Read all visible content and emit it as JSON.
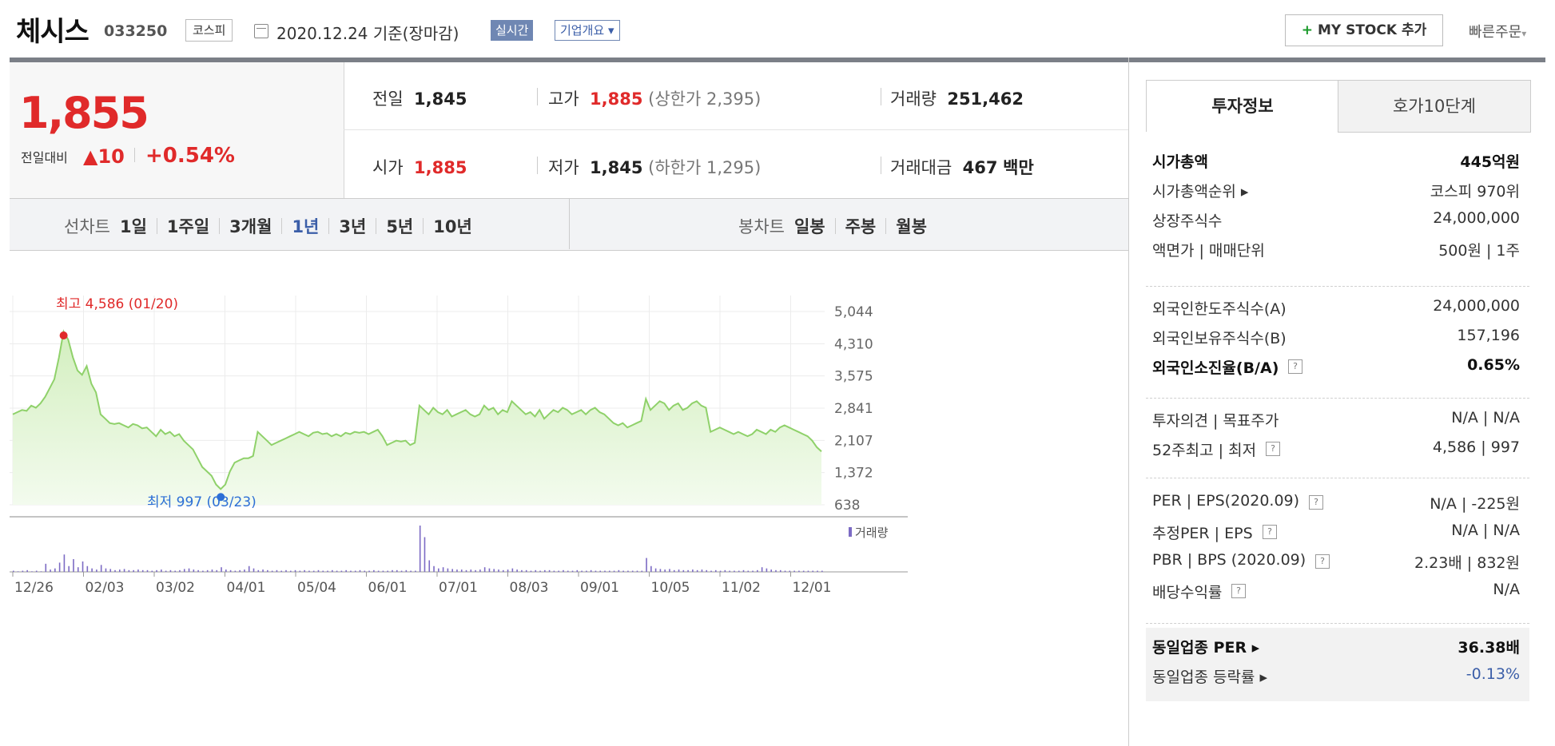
{
  "header": {
    "company_name": "체시스",
    "code": "033250",
    "market": "코스피",
    "date_text": "2020.12.24 기준(장마감)",
    "realtime_label": "실시간",
    "company_info_label": "기업개요",
    "mystock_label": "MY STOCK 추가",
    "quick_order_label": "빠른주문"
  },
  "price": {
    "current": "1,855",
    "change_label": "전일대비",
    "change_value": "▲10",
    "change_pct": "+0.54%"
  },
  "summary": {
    "prev_label": "전일",
    "prev_value": "1,845",
    "high_label": "고가",
    "high_value": "1,885",
    "upper_limit": "(상한가 2,395)",
    "volume_label": "거래량",
    "volume_value": "251,462",
    "open_label": "시가",
    "open_value": "1,885",
    "low_label": "저가",
    "low_value": "1,845",
    "lower_limit": "(하한가 1,295)",
    "amount_label": "거래대금",
    "amount_value": "467",
    "amount_unit": "백만"
  },
  "chart_tabs": {
    "line_label": "선차트",
    "line_tabs": [
      "1일",
      "1주일",
      "3개월",
      "1년",
      "3년",
      "5년",
      "10년"
    ],
    "active": "1년",
    "candle_label": "봉차트",
    "candle_tabs": [
      "일봉",
      "주봉",
      "월봉"
    ]
  },
  "chart_data": {
    "type": "area",
    "title": "",
    "y_ticks": [
      5044,
      4310,
      3575,
      2841,
      2107,
      1372,
      638
    ],
    "ylim": [
      638,
      5044
    ],
    "x_ticks": [
      "12/26",
      "02/03",
      "03/02",
      "04/01",
      "05/04",
      "06/01",
      "07/01",
      "08/03",
      "09/01",
      "10/05",
      "11/02",
      "12/01"
    ],
    "high_annotation": "최고 4,586 (01/20)",
    "low_annotation": "최저 997 (03/23)",
    "volume_label": "거래량",
    "grid": true,
    "series": [
      {
        "values": [
          2700,
          2750,
          2800,
          2780,
          2900,
          2850,
          2950,
          3100,
          3300,
          3500,
          4000,
          4586,
          4400,
          4000,
          3700,
          3600,
          3800,
          3400,
          3200,
          2700,
          2600,
          2500,
          2480,
          2500,
          2450,
          2400,
          2480,
          2450,
          2380,
          2400,
          2300,
          2200,
          2350,
          2250,
          2300,
          2200,
          2250,
          2100,
          2000,
          1900,
          1700,
          1500,
          1400,
          1300,
          1100,
          997,
          1100,
          1400,
          1600,
          1650,
          1700,
          1700,
          1750,
          2300,
          2200,
          2100,
          2000,
          2050,
          2100,
          2150,
          2200,
          2250,
          2300,
          2250,
          2200,
          2280,
          2300,
          2250,
          2270,
          2200,
          2250,
          2200,
          2280,
          2250,
          2300,
          2280,
          2300,
          2250,
          2300,
          2350,
          2200,
          2000,
          2050,
          2100,
          2080,
          2100,
          2000,
          2050,
          2900,
          2800,
          2700,
          2850,
          2750,
          2700,
          2800,
          2650,
          2700,
          2750,
          2800,
          2700,
          2650,
          2700,
          2900,
          2800,
          2850,
          2700,
          2800,
          2750,
          3000,
          2900,
          2800,
          2700,
          2750,
          2650,
          2800,
          2600,
          2700,
          2800,
          2750,
          2850,
          2800,
          2700,
          2750,
          2800,
          2700,
          2800,
          2850,
          2750,
          2700,
          2600,
          2500,
          2450,
          2500,
          2400,
          2450,
          2500,
          2550,
          3050,
          2800,
          2900,
          3000,
          2950,
          2800,
          2900,
          2950,
          2800,
          2850,
          2950,
          3000,
          2900,
          2850,
          2300,
          2350,
          2400,
          2350,
          2300,
          2250,
          2300,
          2250,
          2200,
          2250,
          2350,
          2300,
          2250,
          2350,
          2300,
          2400,
          2450,
          2400,
          2350,
          2300,
          2250,
          2200,
          2100,
          1950,
          1855
        ]
      }
    ],
    "volume": [
      2,
      1,
      2,
      3,
      1,
      2,
      1,
      14,
      4,
      6,
      16,
      30,
      10,
      22,
      8,
      18,
      10,
      6,
      4,
      12,
      6,
      5,
      3,
      4,
      5,
      3,
      3,
      4,
      3,
      3,
      2,
      3,
      4,
      2,
      3,
      2,
      3,
      5,
      6,
      4,
      3,
      2,
      3,
      4,
      3,
      8,
      4,
      3,
      2,
      3,
      4,
      10,
      6,
      3,
      4,
      3,
      2,
      3,
      2,
      3,
      2,
      3,
      2,
      3,
      2,
      2,
      3,
      2,
      2,
      3,
      2,
      2,
      3,
      2,
      2,
      3,
      2,
      2,
      3,
      2,
      2,
      2,
      3,
      3,
      2,
      3,
      2,
      2,
      80,
      60,
      20,
      10,
      6,
      8,
      6,
      5,
      4,
      4,
      3,
      4,
      3,
      4,
      8,
      6,
      5,
      4,
      3,
      4,
      6,
      4,
      3,
      3,
      2,
      3,
      2,
      3,
      3,
      2,
      2,
      3,
      2,
      2,
      3,
      2,
      2,
      3,
      2,
      2,
      2,
      2,
      2,
      3,
      2,
      2,
      2,
      2,
      2,
      24,
      10,
      6,
      5,
      4,
      5,
      3,
      4,
      3,
      3,
      4,
      3,
      4,
      3,
      2,
      3,
      2,
      3,
      2,
      2,
      2,
      3,
      2,
      2,
      3,
      8,
      6,
      4,
      3,
      3,
      2,
      2,
      2,
      2,
      2,
      2,
      2,
      2,
      2
    ]
  },
  "side": {
    "tab_invest": "투자정보",
    "tab_quote": "호가10단계",
    "rows1": [
      {
        "l": "시가총액",
        "r": "445억원",
        "bold": true
      },
      {
        "l": "시가총액순위 ▸",
        "r": "코스피 970위"
      },
      {
        "l": "상장주식수",
        "r": "24,000,000"
      },
      {
        "l": "액면가 | 매매단위",
        "r": "500원 | 1주"
      }
    ],
    "rows2": [
      {
        "l": "외국인한도주식수(A)",
        "r": "24,000,000"
      },
      {
        "l": "외국인보유주식수(B)",
        "r": "157,196"
      },
      {
        "l": "외국인소진율(B/A)",
        "r": "0.65%",
        "bold": true,
        "q": true
      }
    ],
    "rows3": [
      {
        "l": "투자의견 | 목표주가",
        "r": "N/A | N/A"
      },
      {
        "l": "52주최고 | 최저",
        "r": "4,586 | 997",
        "q": true
      }
    ],
    "rows4": [
      {
        "l": "PER | EPS(2020.09)",
        "r": "N/A | -225원",
        "q": true
      },
      {
        "l": "추정PER | EPS",
        "r": "N/A | N/A",
        "q": true
      },
      {
        "l": "PBR | BPS (2020.09)",
        "r": "2.23배 | 832원",
        "q": true
      },
      {
        "l": "배당수익률",
        "r": "N/A",
        "q": true
      }
    ],
    "rows5": [
      {
        "l": "동일업종 PER ▸",
        "r": "36.38배",
        "bold": true
      },
      {
        "l": "동일업종 등락률 ▸",
        "r": "-0.13%",
        "blue": true
      }
    ],
    "q_icon": "?"
  },
  "colors": {
    "up": "#e02a2a",
    "line": "#8fd16a",
    "fill": "#e6f5d9",
    "accent": "#3b5ea8"
  }
}
